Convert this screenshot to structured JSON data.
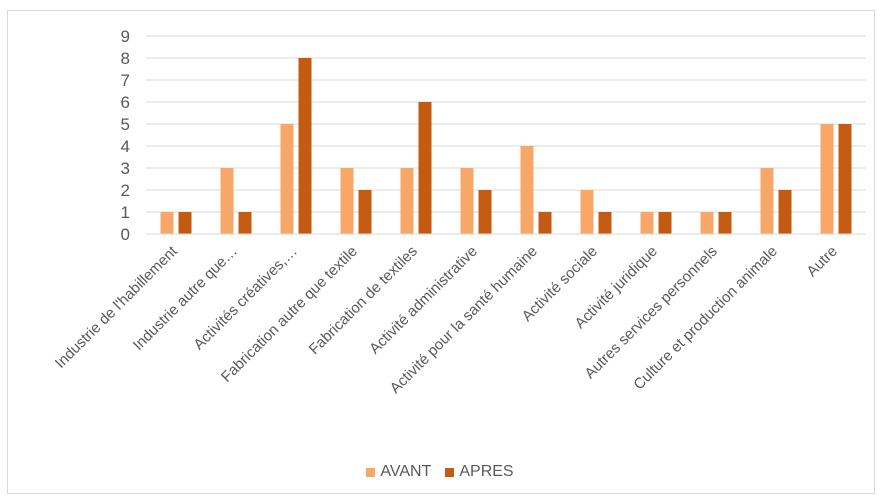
{
  "chart_data": {
    "type": "bar",
    "title": "",
    "xlabel": "",
    "ylabel": "",
    "ylim": [
      0,
      9
    ],
    "yticks": [
      0,
      1,
      2,
      3,
      4,
      5,
      6,
      7,
      8,
      9
    ],
    "grid": true,
    "legend_position": "bottom",
    "categories": [
      "Industrie de l'habillement",
      "Industrie autre que…",
      "Activités créatives,…",
      "Fabrication autre que textile",
      "Fabrication de textiles",
      "Activité administrative",
      "Activité pour la santé humaine",
      "Activité sociale",
      "Activité juridique",
      "Autres services personnels",
      "Culture et production animale",
      "Autre"
    ],
    "series": [
      {
        "name": "AVANT",
        "color": "#f7a868",
        "values": [
          1,
          3,
          5,
          3,
          3,
          3,
          4,
          2,
          1,
          1,
          3,
          5
        ]
      },
      {
        "name": "APRES",
        "color": "#c55a11",
        "values": [
          1,
          1,
          8,
          2,
          6,
          2,
          1,
          1,
          1,
          1,
          2,
          5
        ]
      }
    ]
  }
}
